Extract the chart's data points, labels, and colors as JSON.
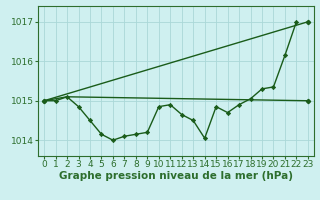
{
  "title": "Graphe pression niveau de la mer (hPa)",
  "bg_color": "#cff0f0",
  "grid_color": "#aad8d8",
  "line_color": "#1a5c1a",
  "marker_color": "#1a5c1a",
  "xlim": [
    -0.5,
    23.5
  ],
  "ylim": [
    1013.6,
    1017.4
  ],
  "yticks": [
    1014,
    1015,
    1016,
    1017
  ],
  "xticks": [
    0,
    1,
    2,
    3,
    4,
    5,
    6,
    7,
    8,
    9,
    10,
    11,
    12,
    13,
    14,
    15,
    16,
    17,
    18,
    19,
    20,
    21,
    22,
    23
  ],
  "series1_x": [
    0,
    1,
    2,
    3,
    4,
    5,
    6,
    7,
    8,
    9,
    10,
    11,
    12,
    13,
    14,
    15,
    16,
    17,
    18,
    19,
    20,
    21,
    22
  ],
  "series1_y": [
    1015.0,
    1015.0,
    1015.1,
    1014.85,
    1014.5,
    1014.15,
    1014.0,
    1014.1,
    1014.15,
    1014.2,
    1014.85,
    1014.9,
    1014.65,
    1014.5,
    1014.05,
    1014.85,
    1014.7,
    1014.9,
    1015.05,
    1015.3,
    1015.35,
    1016.15,
    1017.0
  ],
  "series2_x": [
    0,
    23
  ],
  "series2_y": [
    1015.0,
    1017.0
  ],
  "series3_x": [
    0,
    2,
    23
  ],
  "series3_y": [
    1015.0,
    1015.1,
    1015.0
  ],
  "xlabel_fontsize": 7.5,
  "tick_fontsize": 6.5,
  "axis_color": "#2d6e2d",
  "spine_color": "#2d6e2d",
  "linewidth": 1.0,
  "markersize": 2.2
}
